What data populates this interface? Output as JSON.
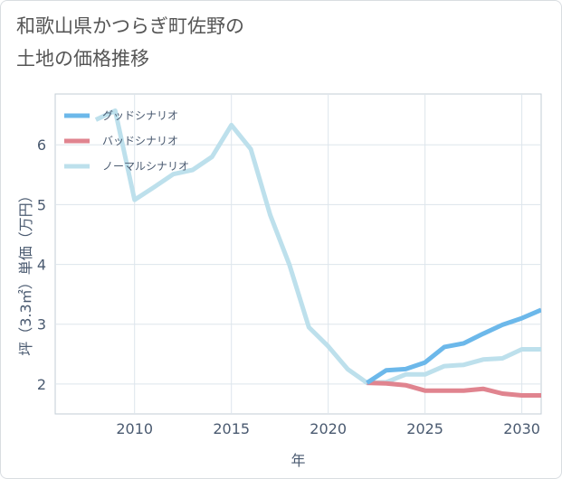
{
  "title_line1": "和歌山県かつらぎ町佐野の",
  "title_line2": "土地の価格推移",
  "chart_data": {
    "type": "line",
    "xlabel": "年",
    "ylabel": "坪（3.3㎡）単価（万円）",
    "xlim": [
      2005.9,
      2031
    ],
    "ylim": [
      1.5,
      6.85
    ],
    "x_ticks": [
      2010,
      2015,
      2020,
      2025,
      2030
    ],
    "y_ticks": [
      2,
      3,
      4,
      5,
      6
    ],
    "grid": true,
    "legend_position": "top-left",
    "series": [
      {
        "name": "グッドシナリオ",
        "color": "#6cb8ea",
        "x": [
          2022,
          2023,
          2024,
          2025,
          2026,
          2027,
          2028,
          2029,
          2030,
          2031
        ],
        "y": [
          2.02,
          2.23,
          2.25,
          2.36,
          2.62,
          2.68,
          2.84,
          2.99,
          3.1,
          3.24
        ]
      },
      {
        "name": "バッドシナリオ",
        "color": "#e0848f",
        "x": [
          2022,
          2023,
          2024,
          2025,
          2026,
          2027,
          2028,
          2029,
          2030,
          2031
        ],
        "y": [
          2.02,
          2.01,
          1.98,
          1.89,
          1.89,
          1.89,
          1.92,
          1.84,
          1.81,
          1.81
        ]
      },
      {
        "name": "ノーマルシナリオ",
        "color": "#bde0ec",
        "x": [
          2008,
          2009,
          2010,
          2011,
          2012,
          2013,
          2014,
          2015,
          2016,
          2017,
          2018,
          2019,
          2020,
          2021,
          2022,
          2023,
          2024,
          2025,
          2026,
          2027,
          2028,
          2029,
          2030,
          2031
        ],
        "y": [
          6.42,
          6.57,
          5.08,
          5.29,
          5.51,
          5.58,
          5.8,
          6.33,
          5.93,
          4.83,
          3.99,
          2.95,
          2.63,
          2.25,
          2.02,
          2.03,
          2.16,
          2.16,
          2.3,
          2.32,
          2.41,
          2.43,
          2.58,
          2.58
        ]
      }
    ]
  }
}
